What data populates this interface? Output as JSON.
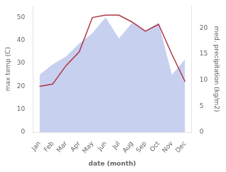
{
  "chart_data": {
    "type": "line",
    "xlabel": "date (month)",
    "ylabel": "max temp (C)",
    "y2label": "med. precipitation (kg/m2)",
    "categories": [
      "Jan",
      "Feb",
      "Mar",
      "Apr",
      "May",
      "Jun",
      "Jul",
      "Aug",
      "Sep",
      "Oct",
      "Nov",
      "Dec"
    ],
    "series": [
      {
        "type": "area",
        "axis": "y2",
        "color": "#c8d0f0",
        "values": [
          11,
          13,
          14.5,
          17,
          19,
          22,
          18,
          21,
          19.5,
          21,
          11,
          14
        ]
      },
      {
        "type": "line",
        "axis": "y",
        "color": "#b03545",
        "values": [
          20,
          21,
          29,
          35,
          50,
          51,
          51,
          48,
          44,
          47,
          34,
          22
        ]
      }
    ],
    "ylim": [
      0,
      55
    ],
    "yticks": [
      0,
      10,
      20,
      30,
      40,
      50
    ],
    "y2lim": [
      0,
      24.2
    ],
    "y2ticks": [
      0,
      5,
      10,
      15,
      20
    ],
    "grid": false
  }
}
